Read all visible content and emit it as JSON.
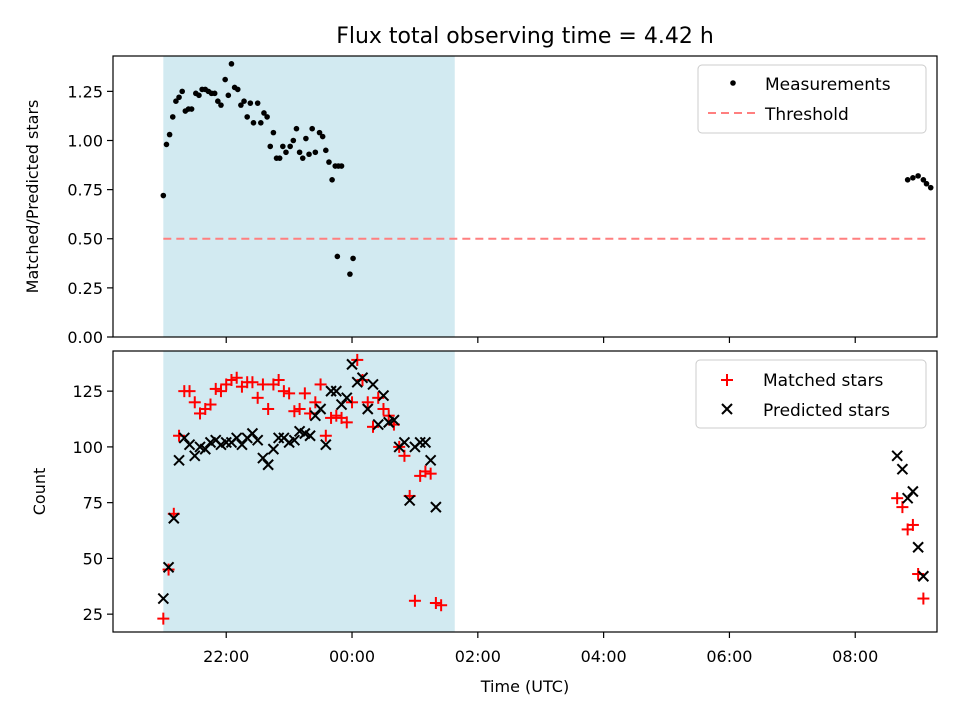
{
  "title": "Flux total observing time = 4.42 h",
  "colors": {
    "shade": "#add8e6",
    "measure": "#000000",
    "threshold": "#ff7f7f",
    "matched": "#ff0000",
    "predicted": "#000000"
  },
  "chart_data": [
    {
      "type": "scatter",
      "name": "ratio-panel",
      "ylabel": "Matched/Predicted stars",
      "ylim": [
        0,
        1.43
      ],
      "yticks": [
        0.0,
        0.25,
        0.5,
        0.75,
        1.0,
        1.25
      ],
      "yticklabels": [
        "0.00",
        "0.25",
        "0.50",
        "0.75",
        "1.00",
        "1.25"
      ],
      "legend": [
        "Measurements",
        "Threshold"
      ],
      "legend_position": "top-right",
      "shaded_interval": [
        "21:00",
        "01:38"
      ],
      "threshold": {
        "value": 0.5,
        "x": [
          "21:00",
          "09:10"
        ]
      },
      "series": [
        {
          "name": "Measurements",
          "points": [
            [
              "21:00",
              0.72
            ],
            [
              "21:03",
              0.98
            ],
            [
              "21:06",
              1.03
            ],
            [
              "21:09",
              1.12
            ],
            [
              "21:12",
              1.2
            ],
            [
              "21:15",
              1.22
            ],
            [
              "21:18",
              1.25
            ],
            [
              "21:21",
              1.15
            ],
            [
              "21:24",
              1.16
            ],
            [
              "21:27",
              1.16
            ],
            [
              "21:31",
              1.24
            ],
            [
              "21:34",
              1.23
            ],
            [
              "21:37",
              1.26
            ],
            [
              "21:40",
              1.26
            ],
            [
              "21:43",
              1.25
            ],
            [
              "21:46",
              1.24
            ],
            [
              "21:49",
              1.24
            ],
            [
              "21:52",
              1.2
            ],
            [
              "21:55",
              1.18
            ],
            [
              "21:59",
              1.31
            ],
            [
              "22:02",
              1.23
            ],
            [
              "22:05",
              1.39
            ],
            [
              "22:08",
              1.27
            ],
            [
              "22:11",
              1.26
            ],
            [
              "22:14",
              1.18
            ],
            [
              "22:17",
              1.2
            ],
            [
              "22:20",
              1.12
            ],
            [
              "22:23",
              1.19
            ],
            [
              "22:26",
              1.09
            ],
            [
              "22:30",
              1.19
            ],
            [
              "22:33",
              1.09
            ],
            [
              "22:36",
              1.14
            ],
            [
              "22:39",
              1.12
            ],
            [
              "22:42",
              0.97
            ],
            [
              "22:45",
              1.04
            ],
            [
              "22:48",
              0.91
            ],
            [
              "22:51",
              0.91
            ],
            [
              "22:54",
              0.97
            ],
            [
              "22:57",
              0.94
            ],
            [
              "23:01",
              0.97
            ],
            [
              "23:04",
              1.0
            ],
            [
              "23:07",
              1.06
            ],
            [
              "23:10",
              0.94
            ],
            [
              "23:13",
              0.91
            ],
            [
              "23:16",
              1.01
            ],
            [
              "23:19",
              0.93
            ],
            [
              "23:22",
              1.06
            ],
            [
              "23:25",
              0.94
            ],
            [
              "23:29",
              1.04
            ],
            [
              "23:32",
              1.02
            ],
            [
              "23:35",
              0.95
            ],
            [
              "23:38",
              0.89
            ],
            [
              "23:41",
              0.8
            ],
            [
              "23:44",
              0.87
            ],
            [
              "23:47",
              0.87
            ],
            [
              "23:50",
              0.87
            ],
            [
              "23:46",
              0.41
            ],
            [
              "23:58",
              0.32
            ],
            [
              "00:01",
              0.4
            ],
            [
              "08:50",
              0.8
            ],
            [
              "08:55",
              0.81
            ],
            [
              "09:00",
              0.82
            ],
            [
              "09:05",
              0.8
            ],
            [
              "09:08",
              0.78
            ],
            [
              "09:12",
              0.76
            ]
          ]
        }
      ]
    },
    {
      "type": "scatter",
      "name": "count-panel",
      "xlabel": "Time (UTC)",
      "ylabel": "Count",
      "ylim": [
        17,
        143
      ],
      "yticks": [
        25,
        50,
        75,
        100,
        125
      ],
      "yticklabels": [
        "25",
        "50",
        "75",
        "100",
        "125"
      ],
      "xticklabels": [
        "22:00",
        "00:00",
        "02:00",
        "04:00",
        "06:00",
        "08:00"
      ],
      "legend": [
        "Matched stars",
        "Predicted stars"
      ],
      "legend_position": "top-right",
      "shaded_interval": [
        "21:00",
        "01:38"
      ],
      "series": [
        {
          "name": "Matched stars",
          "points": [
            [
              "21:00",
              23
            ],
            [
              "21:05",
              45
            ],
            [
              "21:10",
              70
            ],
            [
              "21:15",
              105
            ],
            [
              "21:20",
              125
            ],
            [
              "21:25",
              125
            ],
            [
              "21:30",
              120
            ],
            [
              "21:35",
              115
            ],
            [
              "21:40",
              117
            ],
            [
              "21:45",
              119
            ],
            [
              "21:50",
              126
            ],
            [
              "21:55",
              125
            ],
            [
              "22:00",
              128
            ],
            [
              "22:05",
              130
            ],
            [
              "22:10",
              131
            ],
            [
              "22:15",
              127
            ],
            [
              "22:20",
              129
            ],
            [
              "22:25",
              129
            ],
            [
              "22:30",
              122
            ],
            [
              "22:35",
              128
            ],
            [
              "22:40",
              117
            ],
            [
              "22:45",
              128
            ],
            [
              "22:50",
              130
            ],
            [
              "22:55",
              125
            ],
            [
              "23:00",
              124
            ],
            [
              "23:05",
              116
            ],
            [
              "23:10",
              117
            ],
            [
              "23:15",
              124
            ],
            [
              "23:20",
              115
            ],
            [
              "23:25",
              120
            ],
            [
              "23:30",
              128
            ],
            [
              "23:35",
              105
            ],
            [
              "23:40",
              113
            ],
            [
              "23:45",
              114
            ],
            [
              "23:50",
              113
            ],
            [
              "23:55",
              111
            ],
            [
              "00:00",
              120
            ],
            [
              "00:05",
              139
            ],
            [
              "00:10",
              130
            ],
            [
              "00:15",
              120
            ],
            [
              "00:20",
              109
            ],
            [
              "00:25",
              122
            ],
            [
              "00:30",
              117
            ],
            [
              "00:35",
              114
            ],
            [
              "00:40",
              110
            ],
            [
              "00:45",
              100
            ],
            [
              "00:50",
              96
            ],
            [
              "00:55",
              78
            ],
            [
              "01:00",
              31
            ],
            [
              "01:05",
              87
            ],
            [
              "01:10",
              89
            ],
            [
              "01:15",
              88
            ],
            [
              "01:20",
              30
            ],
            [
              "01:25",
              29
            ],
            [
              "08:40",
              77
            ],
            [
              "08:45",
              73
            ],
            [
              "08:50",
              63
            ],
            [
              "08:55",
              65
            ],
            [
              "09:00",
              43
            ],
            [
              "09:05",
              32
            ]
          ]
        },
        {
          "name": "Predicted stars",
          "points": [
            [
              "21:00",
              32
            ],
            [
              "21:05",
              46
            ],
            [
              "21:10",
              68
            ],
            [
              "21:15",
              94
            ],
            [
              "21:20",
              104
            ],
            [
              "21:25",
              101
            ],
            [
              "21:30",
              96
            ],
            [
              "21:35",
              100
            ],
            [
              "21:40",
              99
            ],
            [
              "21:45",
              102
            ],
            [
              "21:50",
              103
            ],
            [
              "21:55",
              101
            ],
            [
              "22:00",
              102
            ],
            [
              "22:05",
              102
            ],
            [
              "22:10",
              104
            ],
            [
              "22:15",
              101
            ],
            [
              "22:20",
              104
            ],
            [
              "22:25",
              106
            ],
            [
              "22:30",
              103
            ],
            [
              "22:35",
              95
            ],
            [
              "22:40",
              92
            ],
            [
              "22:45",
              99
            ],
            [
              "22:50",
              104
            ],
            [
              "22:55",
              104
            ],
            [
              "23:00",
              102
            ],
            [
              "23:05",
              103
            ],
            [
              "23:10",
              107
            ],
            [
              "23:15",
              106
            ],
            [
              "23:20",
              105
            ],
            [
              "23:25",
              114
            ],
            [
              "23:30",
              117
            ],
            [
              "23:35",
              101
            ],
            [
              "23:40",
              125
            ],
            [
              "23:45",
              125
            ],
            [
              "23:50",
              119
            ],
            [
              "23:55",
              122
            ],
            [
              "00:00",
              137
            ],
            [
              "00:05",
              129
            ],
            [
              "00:10",
              131
            ],
            [
              "00:15",
              117
            ],
            [
              "00:20",
              128
            ],
            [
              "00:25",
              110
            ],
            [
              "00:30",
              123
            ],
            [
              "00:35",
              111
            ],
            [
              "00:40",
              112
            ],
            [
              "00:45",
              100
            ],
            [
              "00:50",
              102
            ],
            [
              "00:55",
              76
            ],
            [
              "01:00",
              100
            ],
            [
              "01:05",
              102
            ],
            [
              "01:10",
              102
            ],
            [
              "01:15",
              94
            ],
            [
              "01:20",
              73
            ],
            [
              "08:40",
              96
            ],
            [
              "08:45",
              90
            ],
            [
              "08:50",
              77
            ],
            [
              "08:55",
              80
            ],
            [
              "09:00",
              55
            ],
            [
              "09:05",
              42
            ]
          ]
        }
      ]
    }
  ]
}
